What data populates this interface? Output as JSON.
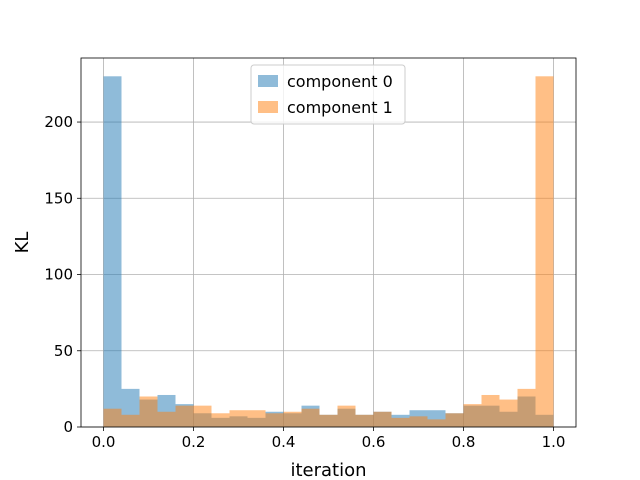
{
  "chart_data": {
    "type": "histogram",
    "xlabel": "iteration",
    "ylabel": "KL",
    "xlim": [
      -0.05,
      1.05
    ],
    "ylim": [
      0,
      242
    ],
    "xticks": [
      0.0,
      0.2,
      0.4,
      0.6,
      0.8,
      1.0
    ],
    "xtick_labels": [
      "0.0",
      "0.2",
      "0.4",
      "0.6",
      "0.8",
      "1.0"
    ],
    "yticks": [
      0,
      50,
      100,
      150,
      200
    ],
    "ytick_labels": [
      "0",
      "50",
      "100",
      "150",
      "200"
    ],
    "grid": true,
    "legend_position": "top-center",
    "bin_width": 0.04,
    "bin_start": 0.0,
    "series": [
      {
        "name": "component 0",
        "color": "#1f77b4",
        "values": [
          230,
          25,
          18,
          21,
          15,
          9,
          6,
          7,
          6,
          10,
          9,
          14,
          8,
          12,
          8,
          10,
          8,
          11,
          11,
          9,
          14,
          14,
          10,
          20,
          8
        ]
      },
      {
        "name": "component 1",
        "color": "#ff7f0e",
        "values": [
          12,
          8,
          20,
          10,
          14,
          14,
          9,
          11,
          11,
          9,
          10,
          12,
          8,
          14,
          8,
          10,
          6,
          7,
          5,
          9,
          15,
          21,
          18,
          25,
          230
        ]
      }
    ]
  }
}
